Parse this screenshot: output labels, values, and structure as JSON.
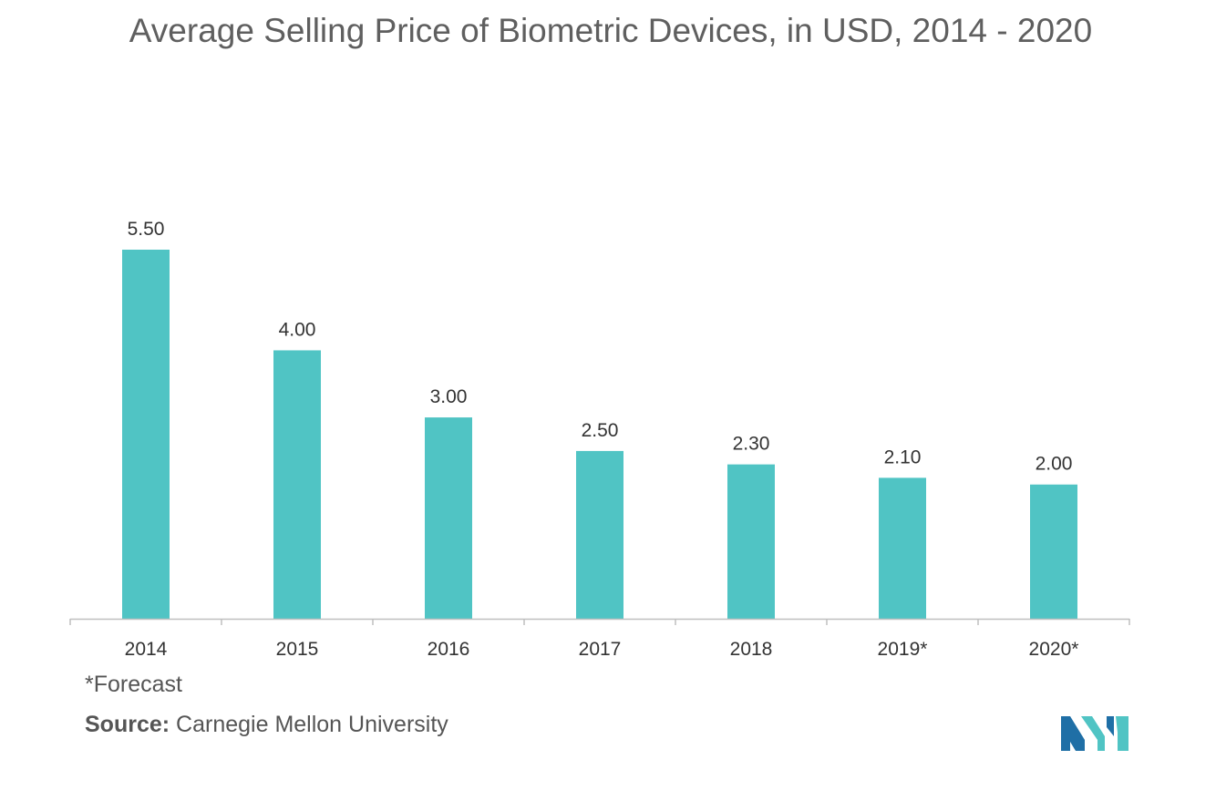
{
  "chart_data": {
    "type": "bar",
    "title": "Average Selling Price of Biometric Devices, in USD, 2014 - 2020",
    "categories": [
      "2014",
      "2015",
      "2016",
      "2017",
      "2018",
      "2019*",
      "2020*"
    ],
    "values": [
      5.5,
      4.0,
      3.0,
      2.5,
      2.3,
      2.1,
      2.0
    ],
    "data_labels": [
      "5.50",
      "4.00",
      "3.00",
      "2.50",
      "2.30",
      "2.10",
      "2.00"
    ],
    "xlabel": "",
    "ylabel": "",
    "ylim": [
      0,
      5.5
    ],
    "grid": false,
    "legend": "none",
    "bar_color": "#50c4c4"
  },
  "footnote": "*Forecast",
  "source": {
    "label": "Source:",
    "text": " Carnegie Mellon University"
  },
  "colors": {
    "title": "#5f5f5f",
    "text": "#333333",
    "axis": "#bfbfbf",
    "logo_dark": "#1f6fa6",
    "logo_light": "#50c4c4"
  }
}
